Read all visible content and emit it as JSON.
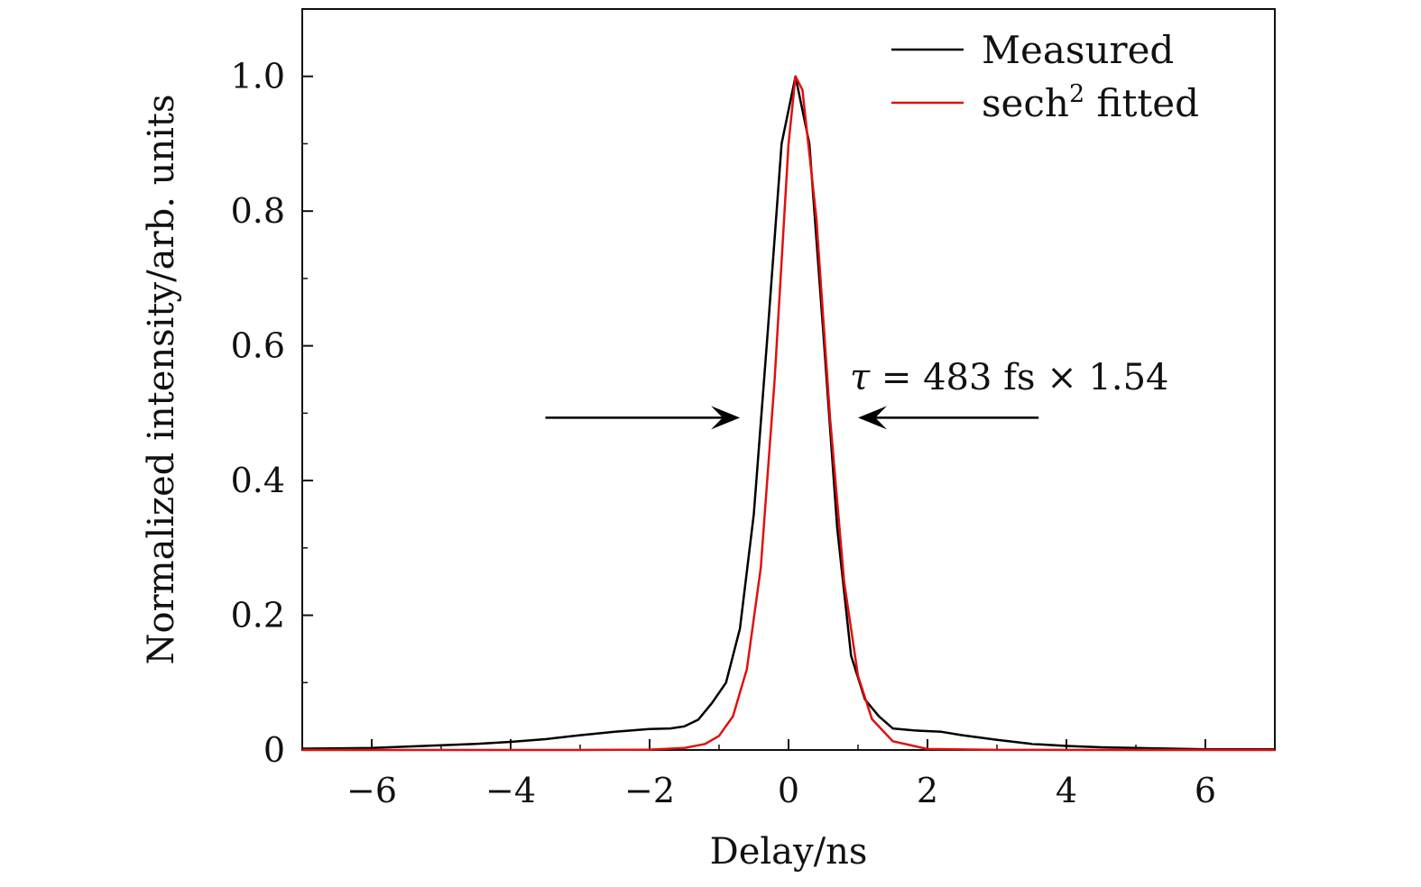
{
  "chart_data": {
    "type": "line",
    "title": "",
    "xlabel": "Delay/ns",
    "ylabel": "Normalized intensity/arb. units",
    "xlim": [
      -7,
      7
    ],
    "ylim": [
      0,
      1.1
    ],
    "xticks": [
      -6,
      -4,
      -2,
      0,
      2,
      4,
      6
    ],
    "xtick_labels": [
      "−6",
      "−4",
      "−2",
      "0",
      "2",
      "4",
      "6"
    ],
    "yticks": [
      0,
      0.2,
      0.4,
      0.6,
      0.8,
      1.0
    ],
    "ytick_labels": [
      "0",
      "0.2",
      "0.4",
      "0.6",
      "0.8",
      "1.0"
    ],
    "grid": false,
    "legend_position": "top-right",
    "series": [
      {
        "name": "Measured",
        "color": "#000000",
        "x": [
          -7,
          -6,
          -5.5,
          -5,
          -4.5,
          -4,
          -3.5,
          -3,
          -2.5,
          -2,
          -1.7,
          -1.5,
          -1.3,
          -1.1,
          -0.9,
          -0.7,
          -0.5,
          -0.3,
          -0.1,
          0.1,
          0.3,
          0.5,
          0.7,
          0.9,
          1.1,
          1.3,
          1.5,
          1.8,
          2.2,
          2.5,
          3,
          3.5,
          4,
          4.5,
          5,
          5.5,
          6,
          7
        ],
        "y": [
          0.002,
          0.003,
          0.005,
          0.007,
          0.009,
          0.012,
          0.016,
          0.022,
          0.027,
          0.031,
          0.032,
          0.035,
          0.045,
          0.07,
          0.1,
          0.18,
          0.35,
          0.62,
          0.9,
          1.0,
          0.9,
          0.62,
          0.33,
          0.14,
          0.075,
          0.05,
          0.032,
          0.029,
          0.027,
          0.022,
          0.015,
          0.009,
          0.006,
          0.004,
          0.003,
          0.002,
          0.001,
          0.001
        ]
      },
      {
        "name": "sech² fitted",
        "color": "#e01010",
        "x": [
          -7,
          -3,
          -2,
          -1.5,
          -1.2,
          -1,
          -0.8,
          -0.6,
          -0.4,
          -0.2,
          0,
          0.1,
          0.2,
          0.4,
          0.6,
          0.8,
          1,
          1.2,
          1.5,
          2,
          3,
          7
        ],
        "y": [
          0,
          0,
          0.0005,
          0.003,
          0.009,
          0.021,
          0.05,
          0.12,
          0.27,
          0.55,
          0.9,
          1.0,
          0.98,
          0.79,
          0.49,
          0.25,
          0.11,
          0.046,
          0.013,
          0.0015,
          0.0001,
          0
        ],
        "peak_x": 0.1,
        "fwhm": 0.744
      }
    ],
    "legend": [
      {
        "label_main": "sech",
        "label_sup": "2",
        "label_rest": " fitted"
      }
    ],
    "annotation": {
      "text_tau": "τ",
      "text_rest": " = 483 fs × 1.54",
      "arrow_left_from_x": -3.5,
      "arrow_left_to_x": -0.7,
      "arrow_right_from_x": 3.6,
      "arrow_right_to_x": 1.0,
      "arrow_y": 0.5
    }
  }
}
